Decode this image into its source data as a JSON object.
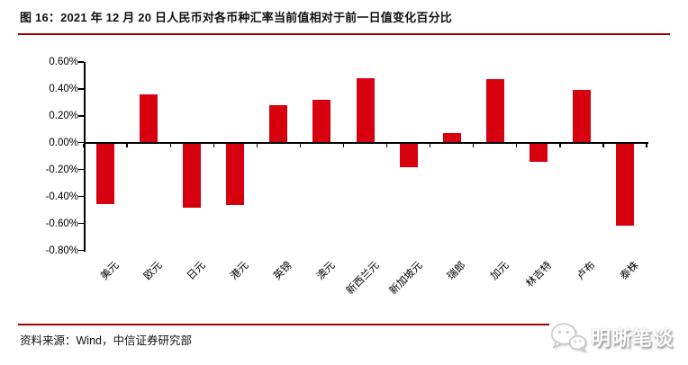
{
  "header": {
    "title": "图 16：2021 年 12 月 20 日人民币对各币种汇率当前值相对于前一日值变化百分比"
  },
  "footer": {
    "source": "资料来源：Wind，中信证券研究部"
  },
  "watermark": {
    "name": "明晰笔谈",
    "icon": "wechat-icon"
  },
  "colors": {
    "bar": "#D7000F",
    "divider": "#A00000",
    "axis": "#000000"
  },
  "chart_data": {
    "type": "bar",
    "title": "2021 年 12 月 20 日人民币对各币种汇率当前值相对于前一日值变化百分比",
    "categories": [
      "美元",
      "欧元",
      "日元",
      "港元",
      "英镑",
      "澳元",
      "新西兰元",
      "新加坡元",
      "瑞郎",
      "加元",
      "林吉特",
      "卢布",
      "泰株"
    ],
    "values": [
      -0.45,
      0.36,
      -0.48,
      -0.46,
      0.28,
      0.32,
      0.48,
      -0.18,
      0.07,
      0.47,
      -0.14,
      0.39,
      -0.61
    ],
    "unit": "%",
    "xlabel": "",
    "ylabel": "",
    "ylim": [
      -0.8,
      0.6
    ],
    "ytick_step": 0.2,
    "ytick_labels": [
      "0.60%",
      "0.40%",
      "0.20%",
      "0.00%",
      "-0.20%",
      "-0.40%",
      "-0.60%",
      "-0.80%"
    ],
    "grid": false,
    "legend": "none",
    "bar_color": "#D7000F"
  }
}
